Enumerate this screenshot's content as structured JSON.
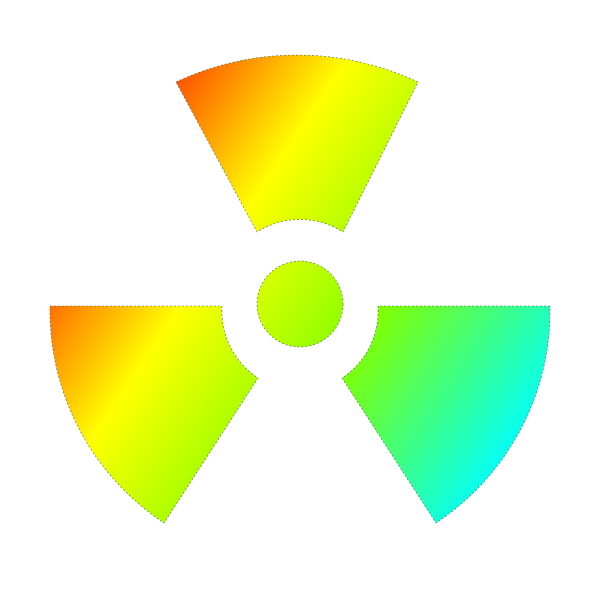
{
  "symbol": {
    "icon": "radiation-trefoil-icon",
    "gradient": {
      "stops": [
        {
          "offset": 0,
          "color": "#ff0000"
        },
        {
          "offset": 0.35,
          "color": "#ffff00"
        },
        {
          "offset": 0.65,
          "color": "#80ff00"
        },
        {
          "offset": 1,
          "color": "#00ffff"
        }
      ]
    }
  }
}
